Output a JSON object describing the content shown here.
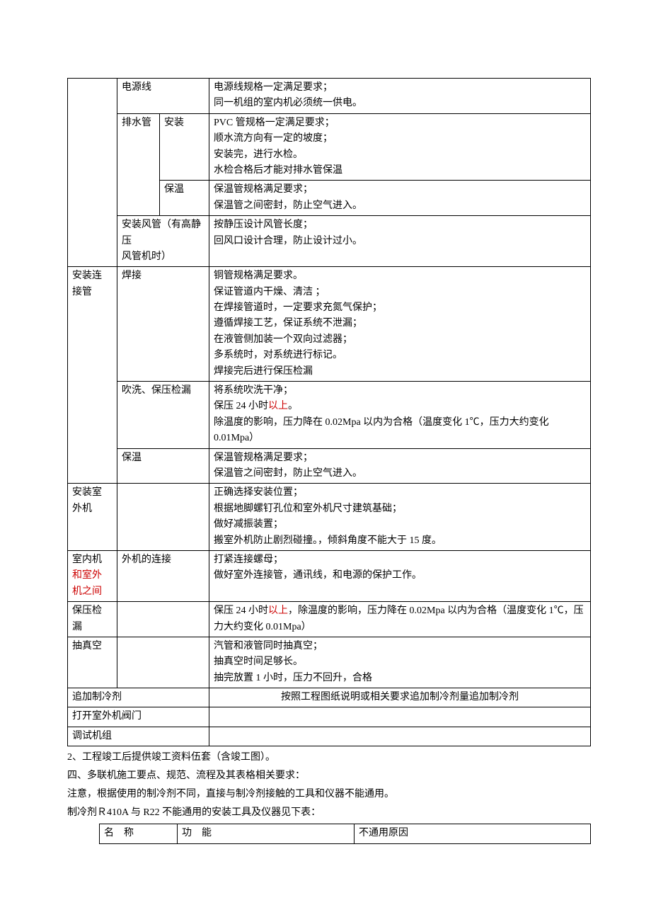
{
  "table1": {
    "r1c2": "电源线",
    "r1c4_l1": "电源线规格一定满足要求；",
    "r1c4_l2": "同一机组的室内机必须统一供电。",
    "r2c2": "排水管",
    "r2c3": "安装",
    "r2c4_l1": "PVC 管规格一定满足要求；",
    "r2c4_l2": "顺水流方向有一定的坡度；",
    "r2c4_l3": "安装完，进行水检。",
    "r2c4_l4": "水检合格后才能对排水管保温",
    "r3c3": "保温",
    "r3c4_l1": "保温管规格满足要求；",
    "r3c4_l2": "保温管之间密封，防止空气进入。",
    "r4c2_l1": "安装风管（有高静压",
    "r4c2_l2": "风管机时）",
    "r4c4_l1": "按静压设计风管长度；",
    "r4c4_l2": "回风口设计合理，防止设计过小。",
    "r5c1_l1": "安装连",
    "r5c1_l2": "接管",
    "r5c2": "焊接",
    "r5c4_l1": "铜管规格满足要求。",
    "r5c4_l2": "保证管道内干燥、清洁 ；",
    "r5c4_l3": "在焊接管道时，一定要求充氮气保护；",
    "r5c4_l4": "遵循焊接工艺，保证系统不泄漏；",
    "r5c4_l5": "在液管侧加装一个双向过滤器；",
    "r5c4_l6": "多系统时，对系统进行标记。",
    "r5c4_l7": "焊接完后进行保压检漏",
    "r6c2": "吹洗、保压检漏",
    "r6c4_l1": "将系统吹洗干净；",
    "r6c4_l2a": "保压 24 小时",
    "r6c4_l2b": "以上",
    "r6c4_l2c": "。",
    "r6c4_l3": "除温度的影响，压力降在 0.02Mpa 以内为合格（温度变化 1℃，压力大约变化 0.01Mpa）",
    "r7c2": "保温",
    "r7c4_l1": "保温管规格满足要求；",
    "r7c4_l2": "保温管之间密封，防止空气进入。",
    "r8c1_l1": "安装室",
    "r8c1_l2": "外机",
    "r8c4_l1": "正确选择安装位置；",
    "r8c4_l2": "根据地脚螺钉孔位和室外机尺寸建筑基础；",
    "r8c4_l3": "做好减振装置；",
    "r8c4_l4": "搬室外机防止剧烈碰撞。，倾斜角度不能大于 15 度。",
    "r9c1_l1": "室内机",
    "r9c1_l2a": "和室外",
    "r9c1_l3a": "机之间",
    "r9c2": "外机的连接",
    "r9c4_l1": "打紧连接螺母；",
    "r9c4_l2": "做好室外连接管，通讯线，和电源的保护工作。",
    "r10c1_l1": "保压检",
    "r10c1_l2": "漏",
    "r10c4a": "保压 24 小时",
    "r10c4b": "以上",
    "r10c4c": "，除温度的影响，压力降在 0.02Mpa 以内为合格（温度变化 1℃，压力大约变化 0.01Mpa）",
    "r11c1": "抽真空",
    "r11c4_l1": "汽管和液管同时抽真空；",
    "r11c4_l2": "抽真空时间足够长。",
    "r11c4_l3": "抽完放置 1 小时，压力不回升，合格",
    "r12c1": "追加制冷剂",
    "r12c4": "按照工程图纸说明或相关要求追加制冷剂量追加制冷剂",
    "r13c1": "打开室外机阀门",
    "r14c1": "调试机组"
  },
  "paras": {
    "p1": "2、工程竣工后提供竣工资料伍套（含竣工图）。",
    "p2": "四、多联机施工要点、规范、流程及其表格相关要求：",
    "p3": "注意，根据使用的制冷剂不同，直接与制冷剂接触的工具和仪器不能通用。",
    "p4": "制冷剂Ｒ410A 与 R22 不能通用的安装工具及仪器见下表："
  },
  "table2": {
    "h1": "名　称",
    "h2": "功　能",
    "h3": "不通用原因"
  }
}
